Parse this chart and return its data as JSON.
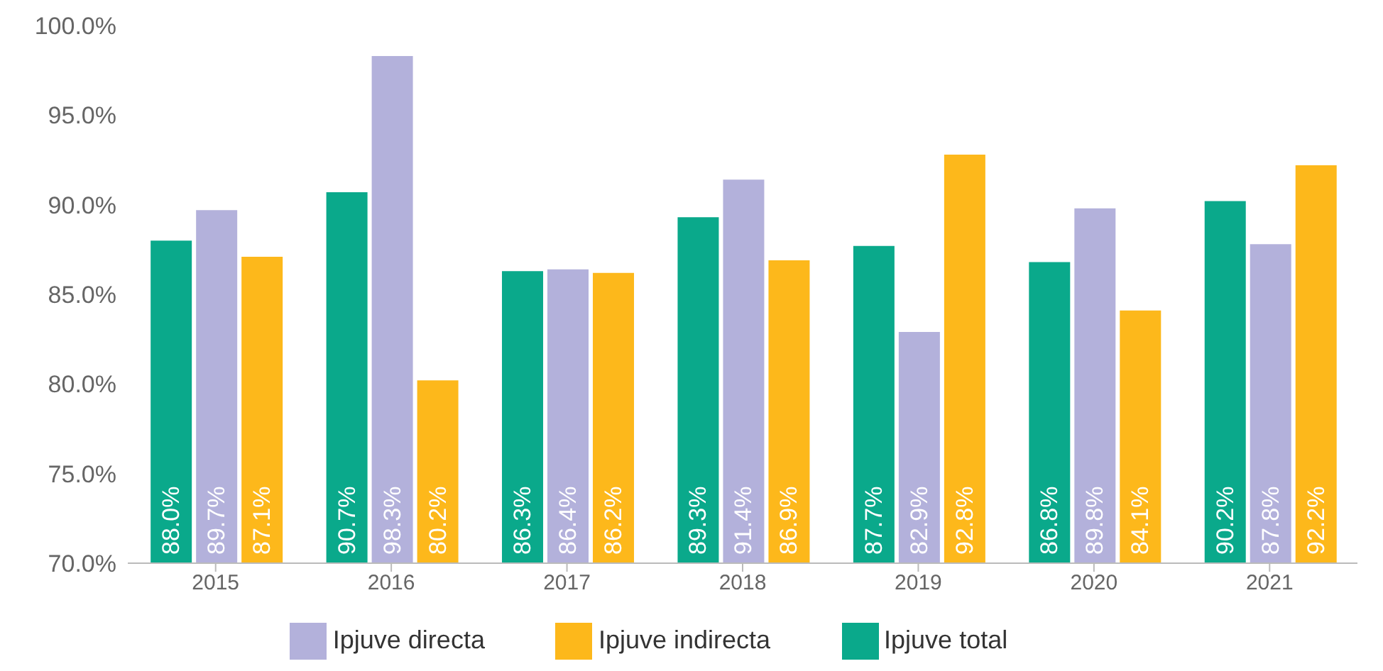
{
  "chart_data": {
    "type": "bar",
    "categories": [
      "2015",
      "2016",
      "2017",
      "2018",
      "2019",
      "2020",
      "2021"
    ],
    "series": [
      {
        "name": "Ipjuve total",
        "color": "#0aa98b",
        "values": [
          88.0,
          90.7,
          86.3,
          89.3,
          87.7,
          86.8,
          90.2
        ],
        "value_labels": [
          "88.0%",
          "90.7%",
          "86.3%",
          "89.3%",
          "87.7%",
          "86.8%",
          "90.2%"
        ]
      },
      {
        "name": "Ipjuve directa",
        "color": "#b3b1db",
        "values": [
          89.7,
          98.3,
          86.4,
          91.4,
          82.9,
          89.8,
          87.8
        ],
        "value_labels": [
          "89.7%",
          "98.3%",
          "86.4%",
          "91.4%",
          "82.9%",
          "89.8%",
          "87.8%"
        ]
      },
      {
        "name": "Ipjuve indirecta",
        "color": "#fdb81b",
        "values": [
          87.1,
          80.2,
          86.2,
          86.9,
          92.8,
          84.1,
          92.2
        ],
        "value_labels": [
          "87.1%",
          "80.2%",
          "86.2%",
          "86.9%",
          "92.8%",
          "84.1%",
          "92.2%"
        ]
      }
    ],
    "ylim": [
      70,
      100
    ],
    "yticks": [
      {
        "value": 70,
        "label": "70.0%"
      },
      {
        "value": 75,
        "label": "75.0%"
      },
      {
        "value": 80,
        "label": "80.0%"
      },
      {
        "value": 85,
        "label": "85.0%"
      },
      {
        "value": 90,
        "label": "90.0%"
      },
      {
        "value": 95,
        "label": "95.0%"
      },
      {
        "value": 100,
        "label": "100.0%"
      }
    ],
    "grid": false,
    "legend": "bottom"
  }
}
